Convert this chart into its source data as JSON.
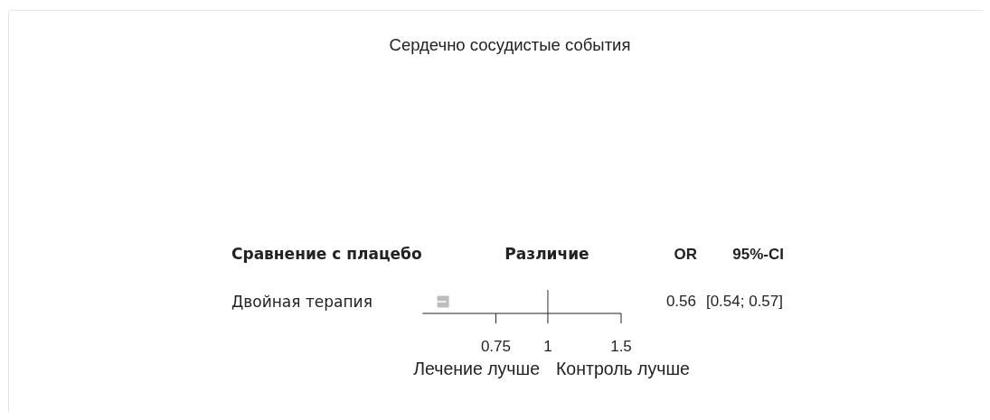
{
  "chart_data": {
    "type": "scatter",
    "title": "Сердечно сосудистые события",
    "ylabel": "Сравнение с плацебо",
    "xlabel": "Различие",
    "orientation": "horizontal",
    "categories": [
      "Двойная терапия"
    ],
    "values": [
      0.56
    ],
    "errors": [
      [
        0.54,
        0.57
      ]
    ],
    "color": "#bdbdbd",
    "marker": "square",
    "log": "x",
    "xlim": [
      0.5,
      1.5
    ],
    "xticks": [
      0.75,
      1,
      1.5
    ],
    "ref_lines": [
      {
        "axis": "x",
        "value": 1,
        "color": "#333333"
      }
    ],
    "annotations": [
      "OR",
      "95%-CI",
      "0.56",
      "[0.54; 0.57]",
      "Лечение лучше",
      "Контроль лучше"
    ]
  }
}
